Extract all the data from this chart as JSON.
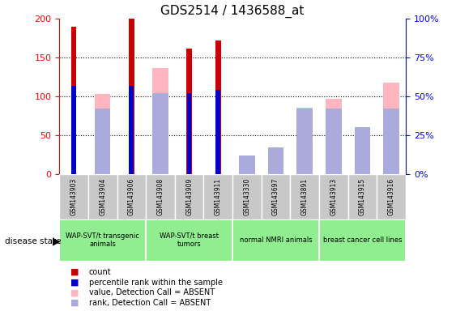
{
  "title": "GDS2514 / 1436588_at",
  "samples": [
    "GSM143903",
    "GSM143904",
    "GSM143906",
    "GSM143908",
    "GSM143909",
    "GSM143911",
    "GSM143330",
    "GSM143697",
    "GSM143891",
    "GSM143913",
    "GSM143915",
    "GSM143916"
  ],
  "count_values": [
    190,
    0,
    200,
    0,
    162,
    172,
    0,
    0,
    0,
    0,
    0,
    0
  ],
  "percentile_rank": [
    57,
    0,
    57,
    0,
    52,
    54,
    0,
    0,
    0,
    0,
    0,
    0
  ],
  "absent_value": [
    0,
    103,
    0,
    136,
    0,
    0,
    13,
    18,
    85,
    97,
    60,
    118
  ],
  "absent_rank": [
    0,
    42,
    0,
    52,
    0,
    0,
    12,
    17,
    42,
    42,
    30,
    42
  ],
  "ylim_left": [
    0,
    200
  ],
  "ylim_right": [
    0,
    100
  ],
  "yticks_left": [
    0,
    50,
    100,
    150,
    200
  ],
  "yticks_right": [
    0,
    25,
    50,
    75,
    100
  ],
  "yticklabels_right": [
    "0%",
    "25%",
    "50%",
    "75%",
    "100%"
  ],
  "groups": [
    {
      "label": "WAP-SVT/t transgenic\nanimals",
      "start": 0,
      "end": 3
    },
    {
      "label": "WAP-SVT/t breast\ntumors",
      "start": 3,
      "end": 6
    },
    {
      "label": "normal NMRI animals",
      "start": 6,
      "end": 9
    },
    {
      "label": "breast cancer cell lines",
      "start": 9,
      "end": 12
    }
  ],
  "color_count": "#CC0000",
  "color_rank": "#0000CC",
  "color_absent_value": "#FFB6C1",
  "color_absent_rank": "#AAAADD",
  "group_color": "#90EE90",
  "sample_box_color": "#C8C8C8",
  "legend_labels": [
    "count",
    "percentile rank within the sample",
    "value, Detection Call = ABSENT",
    "rank, Detection Call = ABSENT"
  ],
  "legend_colors": [
    "#CC0000",
    "#0000CC",
    "#FFB6C1",
    "#AAAADD"
  ]
}
